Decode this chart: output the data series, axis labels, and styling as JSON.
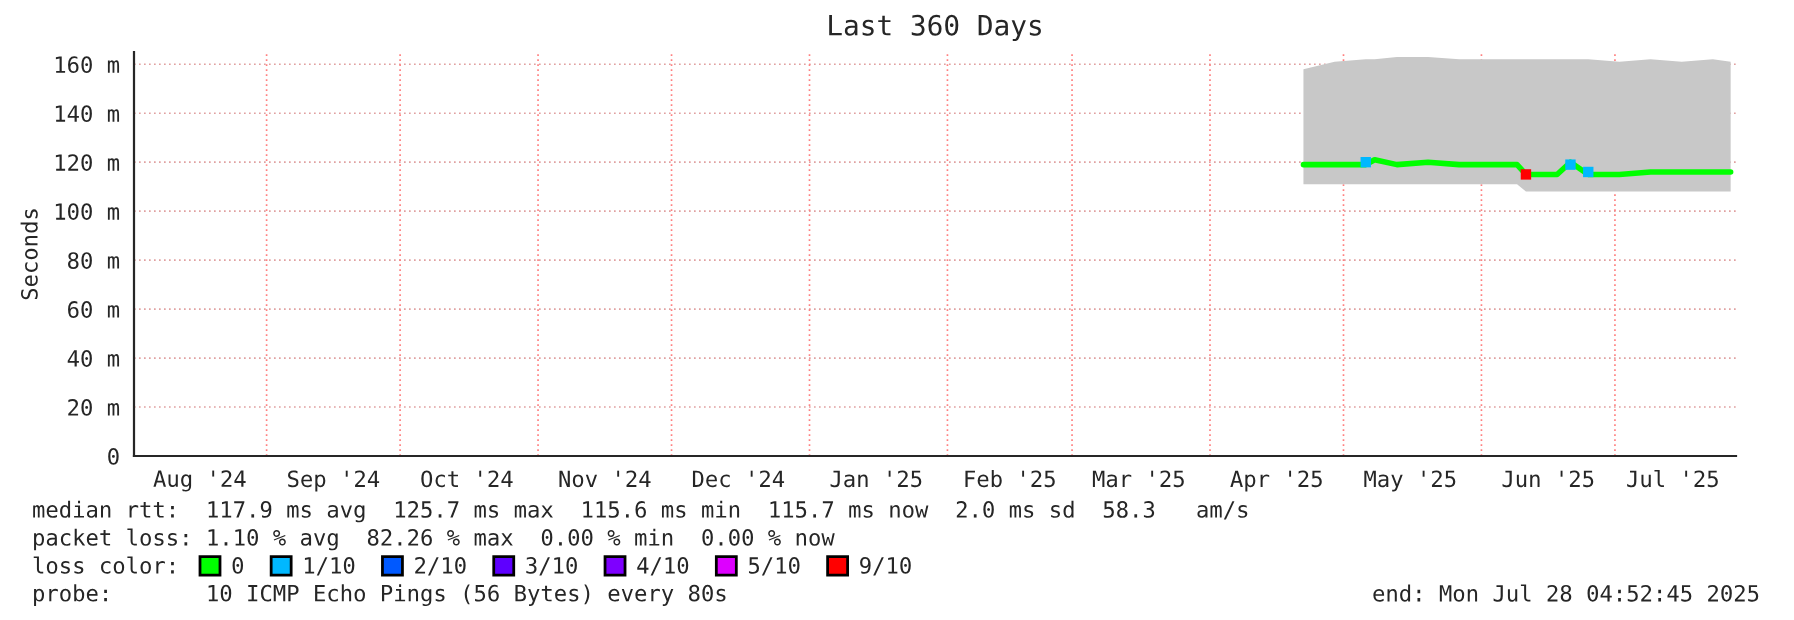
{
  "chart_data": {
    "type": "line",
    "title": "Last 360 Days",
    "ylabel": "Seconds",
    "xlim": [
      "2024-08-02T04:52",
      "2025-07-28T04:52"
    ],
    "ylim": [
      0,
      165
    ],
    "yticks": [
      0,
      {
        "value": 20,
        "label": "20 m"
      },
      {
        "value": 40,
        "label": "40 m"
      },
      {
        "value": 60,
        "label": "60 m"
      },
      {
        "value": 80,
        "label": "80 m"
      },
      {
        "value": 100,
        "label": "100 m"
      },
      {
        "value": 120,
        "label": "120 m"
      },
      {
        "value": 140,
        "label": "140 m"
      },
      {
        "value": 160,
        "label": "160 m"
      }
    ],
    "xticks": [
      {
        "value": "2024-08-17",
        "label": "Aug '24"
      },
      {
        "value": "2024-09-01",
        "label": null
      },
      {
        "value": "2024-09-16",
        "label": "Sep '24"
      },
      {
        "value": "2024-10-01",
        "label": null
      },
      {
        "value": "2024-10-16",
        "label": "Oct '24"
      },
      {
        "value": "2024-11-01",
        "label": null
      },
      {
        "value": "2024-11-16",
        "label": "Nov '24"
      },
      {
        "value": "2024-12-01",
        "label": null
      },
      {
        "value": "2024-12-16",
        "label": "Dec '24"
      },
      {
        "value": "2025-01-01",
        "label": null
      },
      {
        "value": "2025-01-16",
        "label": "Jan '25"
      },
      {
        "value": "2025-02-01",
        "label": null
      },
      {
        "value": "2025-02-15",
        "label": "Feb '25"
      },
      {
        "value": "2025-03-01",
        "label": null
      },
      {
        "value": "2025-03-16",
        "label": "Mar '25"
      },
      {
        "value": "2025-04-01",
        "label": null
      },
      {
        "value": "2025-04-16",
        "label": "Apr '25"
      },
      {
        "value": "2025-05-01",
        "label": null
      },
      {
        "value": "2025-05-16",
        "label": "May '25"
      },
      {
        "value": "2025-06-01",
        "label": null
      },
      {
        "value": "2025-06-16",
        "label": "Jun '25"
      },
      {
        "value": "2025-07-01",
        "label": null
      },
      {
        "value": "2025-07-14",
        "label": "Jul '25"
      }
    ],
    "grid": true,
    "legend": "bottom",
    "legend_title": "loss color:",
    "series": [
      {
        "name": "0",
        "color": "#00ff00",
        "x": [
          "2025-04-22",
          "2025-04-29",
          "2025-05-06",
          "2025-05-08",
          "2025-05-13",
          "2025-05-20",
          "2025-05-27",
          "2025-06-03",
          "2025-06-09",
          "2025-06-11",
          "2025-06-18",
          "2025-06-21",
          "2025-06-25",
          "2025-07-02",
          "2025-07-09",
          "2025-07-16",
          "2025-07-23",
          "2025-07-27"
        ],
        "values": [
          119,
          119,
          119,
          121,
          119,
          120,
          119,
          119,
          119,
          115,
          115,
          120,
          115,
          115,
          116,
          116,
          116,
          116
        ],
        "lower": [
          111,
          111,
          111,
          111,
          111,
          111,
          111,
          111,
          111,
          108,
          108,
          108,
          108,
          108,
          108,
          108,
          108,
          108
        ],
        "upper": [
          158,
          161,
          162,
          162,
          163,
          163,
          162,
          162,
          162,
          162,
          162,
          162,
          162,
          161,
          162,
          161,
          162,
          161
        ]
      },
      {
        "name": "1/10",
        "color": "#00b8ff",
        "type": "scatter",
        "x": [
          "2025-05-06",
          "2025-06-21",
          "2025-06-25"
        ],
        "values": [
          120,
          119,
          116
        ]
      },
      {
        "name": "2/10",
        "color": "#0059ff",
        "type": "scatter"
      },
      {
        "name": "3/10",
        "color": "#5e00ff",
        "type": "scatter"
      },
      {
        "name": "4/10",
        "color": "#7e00ff",
        "type": "scatter"
      },
      {
        "name": "5/10",
        "color": "#dd00ff",
        "type": "scatter"
      },
      {
        "name": "9/10",
        "color": "#ff0000",
        "type": "scatter",
        "x": [
          "2025-06-11"
        ],
        "values": [
          115
        ]
      }
    ],
    "annotations": [
      "median rtt:  117.9 ms avg  125.7 ms max  115.6 ms min  115.7 ms now  2.0 ms sd  58.3   am/s",
      "packet loss: 1.10 % avg  82.26 % max  0.00 % min  0.00 % now",
      "probe:       10 ICMP Echo Pings (56 Bytes) every 80s",
      "end: Mon Jul 28 04:52:45 2025"
    ]
  }
}
